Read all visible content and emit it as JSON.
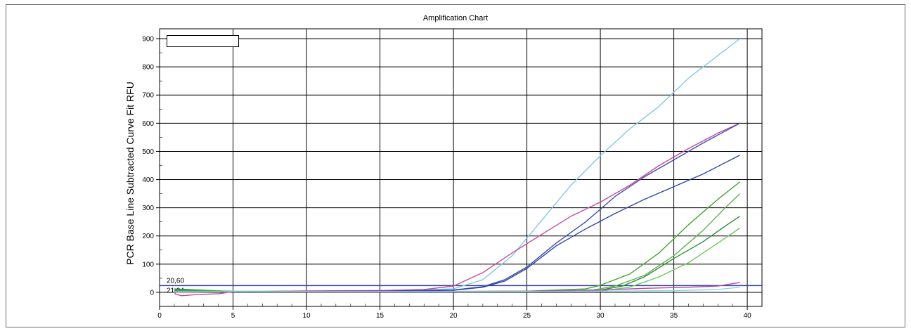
{
  "chart_data": {
    "type": "line",
    "title": "Amplification Chart",
    "xlabel": "",
    "ylabel": "PCR Base Line Subtracted Curve Fit RFU",
    "xlim": [
      0,
      41
    ],
    "ylim": [
      -50,
      935
    ],
    "xticks": [
      0,
      5,
      10,
      15,
      20,
      25,
      30,
      35,
      40
    ],
    "yticks": [
      0,
      100,
      200,
      300,
      400,
      500,
      600,
      700,
      800,
      900
    ],
    "grid": true,
    "legend_position": "top-left",
    "threshold_labels": [
      "20,60",
      "21,94"
    ],
    "threshold_value": 24,
    "series": [
      {
        "color": "#7fc8ea",
        "points": [
          [
            1,
            3
          ],
          [
            5,
            4
          ],
          [
            10,
            4
          ],
          [
            15,
            5
          ],
          [
            20,
            12
          ],
          [
            22,
            45
          ],
          [
            24,
            130
          ],
          [
            26,
            255
          ],
          [
            28,
            380
          ],
          [
            30,
            485
          ],
          [
            32,
            580
          ],
          [
            34,
            660
          ],
          [
            36,
            760
          ],
          [
            38,
            840
          ],
          [
            39.5,
            900
          ]
        ]
      },
      {
        "color": "#c74a9a",
        "points": [
          [
            1,
            -5
          ],
          [
            1.5,
            -12
          ],
          [
            2.5,
            -8
          ],
          [
            4,
            -5
          ],
          [
            5,
            2
          ],
          [
            10,
            5
          ],
          [
            15,
            6
          ],
          [
            18,
            10
          ],
          [
            20,
            22
          ],
          [
            22,
            70
          ],
          [
            24,
            140
          ],
          [
            26,
            205
          ],
          [
            28,
            270
          ],
          [
            30,
            320
          ],
          [
            32,
            380
          ],
          [
            34,
            450
          ],
          [
            36,
            510
          ],
          [
            38,
            565
          ],
          [
            39.5,
            600
          ]
        ]
      },
      {
        "color": "#3b4fb4",
        "points": [
          [
            1,
            5
          ],
          [
            5,
            3
          ],
          [
            10,
            3
          ],
          [
            15,
            4
          ],
          [
            20,
            8
          ],
          [
            22,
            20
          ],
          [
            23.5,
            45
          ],
          [
            25,
            90
          ],
          [
            27,
            175
          ],
          [
            29,
            250
          ],
          [
            31,
            340
          ],
          [
            33,
            410
          ],
          [
            35,
            470
          ],
          [
            37,
            530
          ],
          [
            39.5,
            600
          ]
        ]
      },
      {
        "color": "#2f45a8",
        "points": [
          [
            1,
            8
          ],
          [
            5,
            3
          ],
          [
            10,
            3
          ],
          [
            15,
            4
          ],
          [
            20,
            7
          ],
          [
            22,
            18
          ],
          [
            23.5,
            40
          ],
          [
            25,
            85
          ],
          [
            27,
            165
          ],
          [
            29,
            225
          ],
          [
            31,
            280
          ],
          [
            33,
            330
          ],
          [
            35,
            375
          ],
          [
            37,
            420
          ],
          [
            39.5,
            487
          ]
        ]
      },
      {
        "color": "#3ea82e",
        "points": [
          [
            1,
            12
          ],
          [
            5,
            3
          ],
          [
            10,
            3
          ],
          [
            15,
            3
          ],
          [
            20,
            3
          ],
          [
            25,
            4
          ],
          [
            29,
            12
          ],
          [
            30,
            25
          ],
          [
            32,
            65
          ],
          [
            34,
            140
          ],
          [
            36,
            240
          ],
          [
            38,
            330
          ],
          [
            39.5,
            392
          ]
        ]
      },
      {
        "color": "#59b548",
        "points": [
          [
            1,
            6
          ],
          [
            5,
            3
          ],
          [
            10,
            2
          ],
          [
            15,
            2
          ],
          [
            20,
            2
          ],
          [
            25,
            3
          ],
          [
            29.5,
            8
          ],
          [
            31,
            22
          ],
          [
            33,
            60
          ],
          [
            35,
            130
          ],
          [
            37,
            220
          ],
          [
            38.5,
            300
          ],
          [
            39.5,
            350
          ]
        ]
      },
      {
        "color": "#2e8c36",
        "points": [
          [
            1,
            4
          ],
          [
            5,
            3
          ],
          [
            10,
            3
          ],
          [
            15,
            2
          ],
          [
            20,
            2
          ],
          [
            25,
            3
          ],
          [
            30,
            8
          ],
          [
            31.5,
            22
          ],
          [
            33,
            55
          ],
          [
            35,
            120
          ],
          [
            37,
            180
          ],
          [
            38.5,
            235
          ],
          [
            39.5,
            270
          ]
        ]
      },
      {
        "color": "#6cc95a",
        "points": [
          [
            1,
            2
          ],
          [
            5,
            2
          ],
          [
            10,
            2
          ],
          [
            15,
            2
          ],
          [
            20,
            2
          ],
          [
            25,
            2
          ],
          [
            30,
            5
          ],
          [
            32,
            18
          ],
          [
            34,
            55
          ],
          [
            36,
            105
          ],
          [
            38,
            175
          ],
          [
            39.5,
            228
          ]
        ]
      },
      {
        "color": "#b04d9f",
        "points": [
          [
            1,
            0
          ],
          [
            5,
            2
          ],
          [
            10,
            3
          ],
          [
            15,
            3
          ],
          [
            20,
            3
          ],
          [
            25,
            4
          ],
          [
            30,
            8
          ],
          [
            33,
            14
          ],
          [
            36,
            18
          ],
          [
            38,
            22
          ],
          [
            39.5,
            35
          ]
        ]
      },
      {
        "color": "#8fd3ef",
        "points": [
          [
            1,
            2
          ],
          [
            5,
            2
          ],
          [
            10,
            2
          ],
          [
            15,
            2
          ],
          [
            20,
            2
          ],
          [
            25,
            3
          ],
          [
            30,
            4
          ],
          [
            35,
            6
          ],
          [
            38,
            10
          ],
          [
            39.5,
            18
          ]
        ]
      }
    ]
  }
}
